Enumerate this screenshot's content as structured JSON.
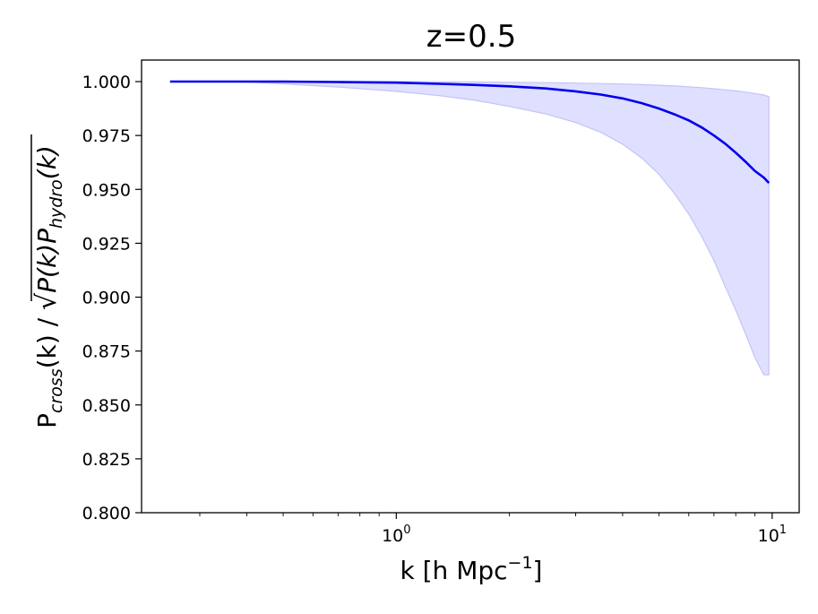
{
  "chart_data": {
    "type": "line",
    "title": "z=0.5",
    "xlabel": "k [h Mpc",
    "xlabel_sup": "−1",
    "xlabel_end": "]",
    "ylabel_parts": {
      "p1": "P",
      "sub1": "cross",
      "p2": "(k) / ",
      "sqrt": "√",
      "p3": "P(k)P",
      "sub2": "hydro",
      "p4": "(k)"
    },
    "x_scale": "log",
    "xlim": [
      0.21,
      11.8
    ],
    "ylim": [
      0.8,
      1.01
    ],
    "x_ticks": [
      {
        "value": 1,
        "base": "10",
        "exp": "0"
      },
      {
        "value": 10,
        "base": "10",
        "exp": "1"
      }
    ],
    "y_ticks": [
      {
        "value": 0.8,
        "label": "0.800"
      },
      {
        "value": 0.825,
        "label": "0.825"
      },
      {
        "value": 0.85,
        "label": "0.850"
      },
      {
        "value": 0.875,
        "label": "0.875"
      },
      {
        "value": 0.9,
        "label": "0.900"
      },
      {
        "value": 0.925,
        "label": "0.925"
      },
      {
        "value": 0.95,
        "label": "0.950"
      },
      {
        "value": 0.975,
        "label": "0.975"
      },
      {
        "value": 1.0,
        "label": "1.000"
      }
    ],
    "grid": false,
    "line_color": "#0000ee",
    "band_color": "#d9d9ff",
    "band_edge_color": "#c4c4f5",
    "series": [
      {
        "x": [
          0.25,
          0.3,
          0.4,
          0.5,
          0.7,
          1.0,
          1.3,
          1.6,
          2.0,
          2.5,
          3.0,
          3.5,
          4.0,
          4.5,
          5.0,
          5.5,
          6.0,
          6.5,
          7.0,
          7.5,
          8.0,
          8.5,
          9.0,
          9.5,
          9.8
        ],
        "y": [
          1.0,
          1.0,
          1.0,
          1.0,
          0.9998,
          0.9995,
          0.999,
          0.9985,
          0.9978,
          0.9968,
          0.9955,
          0.994,
          0.9922,
          0.99,
          0.9875,
          0.9848,
          0.982,
          0.9787,
          0.975,
          0.9712,
          0.967,
          0.9628,
          0.9585,
          0.9555,
          0.953
        ]
      }
    ],
    "band": {
      "x": [
        0.25,
        0.3,
        0.4,
        0.5,
        0.7,
        1.0,
        1.3,
        1.6,
        2.0,
        2.5,
        3.0,
        3.5,
        4.0,
        4.5,
        5.0,
        5.5,
        6.0,
        6.5,
        7.0,
        7.5,
        8.0,
        8.5,
        9.0,
        9.5,
        9.8
      ],
      "lower": [
        1.0,
        1.0,
        0.9998,
        0.999,
        0.9975,
        0.9955,
        0.9935,
        0.9915,
        0.9885,
        0.985,
        0.981,
        0.9765,
        0.971,
        0.9645,
        0.957,
        0.948,
        0.9385,
        0.928,
        0.917,
        0.905,
        0.894,
        0.883,
        0.872,
        0.864,
        0.864
      ],
      "upper": [
        1.0,
        1.0,
        1.0,
        1.0,
        1.0,
        1.0,
        0.9999,
        0.9998,
        0.9997,
        0.9995,
        0.9993,
        0.9991,
        0.9989,
        0.9986,
        0.9983,
        0.998,
        0.9976,
        0.9972,
        0.9967,
        0.9962,
        0.9957,
        0.9951,
        0.9945,
        0.9938,
        0.993
      ]
    }
  }
}
